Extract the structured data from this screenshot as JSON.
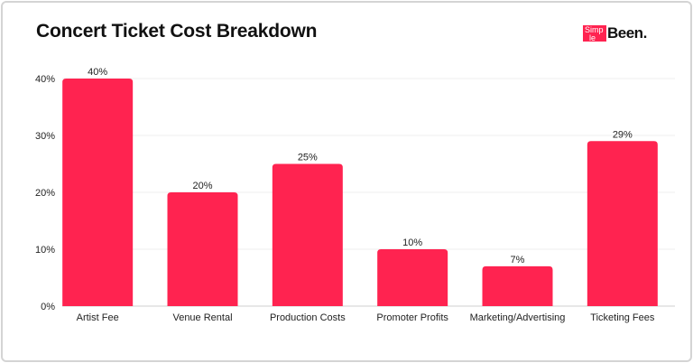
{
  "chart_data": {
    "type": "bar",
    "title": "Concert Ticket Cost Breakdown",
    "categories": [
      "Artist Fee",
      "Venue Rental",
      "Production Costs",
      "Promoter Profits",
      "Marketing/Advertising",
      "Ticketing Fees"
    ],
    "values": [
      40,
      20,
      25,
      10,
      7,
      29
    ],
    "data_labels": [
      "40%",
      "20%",
      "25%",
      "10%",
      "7%",
      "29%"
    ],
    "y_ticks": [
      0,
      10,
      20,
      30,
      40
    ],
    "y_tick_labels": [
      "0%",
      "10%",
      "20%",
      "30%",
      "40%"
    ],
    "ylim": [
      0,
      40
    ],
    "xlabel": "",
    "ylabel": "",
    "grid": true,
    "bar_color": "#ff2350"
  },
  "logo": {
    "text": "SimpleBeen."
  }
}
